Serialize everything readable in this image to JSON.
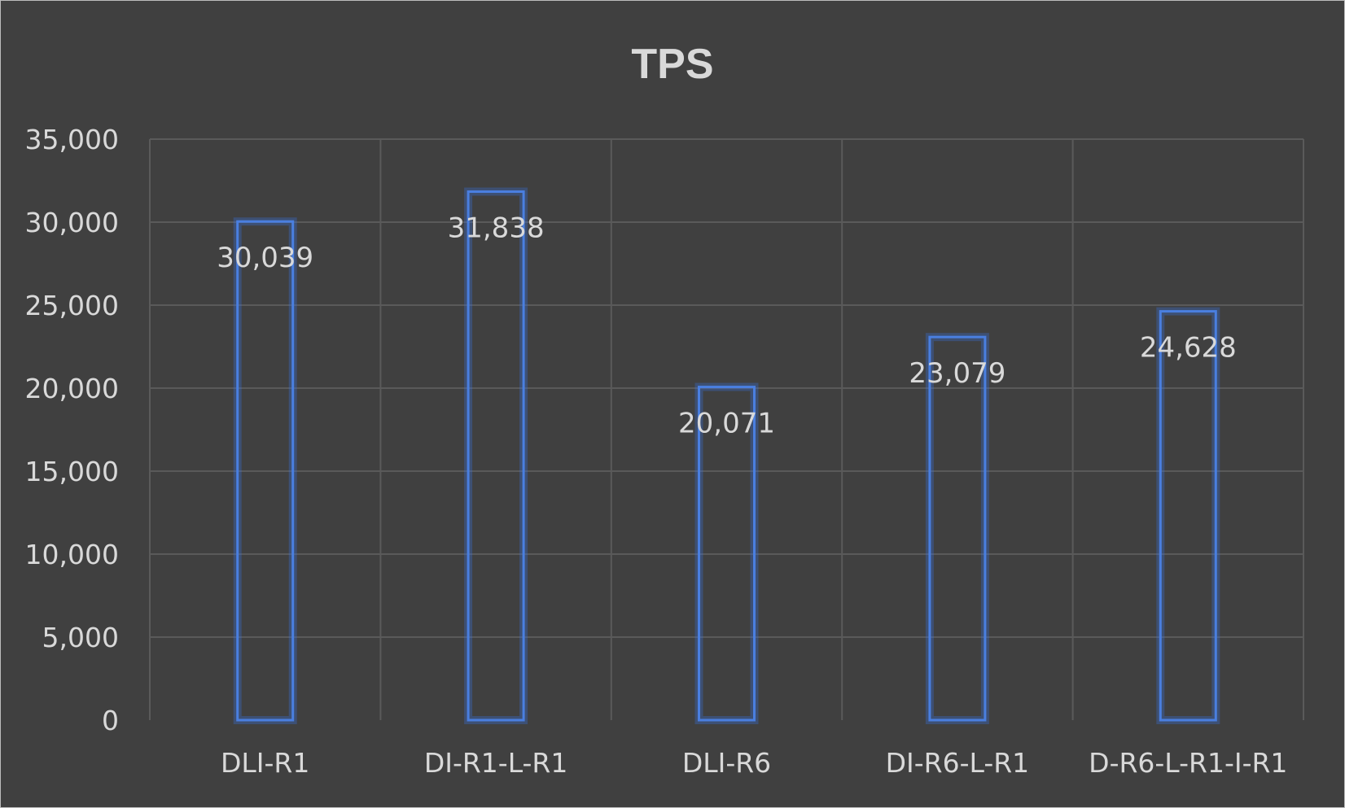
{
  "chart_data": {
    "type": "bar",
    "title": "TPS",
    "xlabel": "",
    "ylabel": "",
    "categories": [
      "DLI-R1",
      "DI-R1-L-R1",
      "DLI-R6",
      "DI-R6-L-R1",
      "D-R6-L-R1-I-R1"
    ],
    "series": [
      {
        "values": [
          30039,
          31838,
          20071,
          23079,
          24628
        ],
        "labels": [
          "30,039",
          "31,838",
          "20,071",
          "23,079",
          "24,628"
        ],
        "color": "#4a7fe0"
      }
    ],
    "ylim": [
      0,
      35000
    ],
    "yticks": [
      0,
      5000,
      10000,
      15000,
      20000,
      25000,
      30000,
      35000
    ],
    "ytick_labels": [
      "0",
      "5,000",
      "10,000",
      "15,000",
      "20,000",
      "25,000",
      "30,000",
      "35,000"
    ],
    "grid": true,
    "legend": "none",
    "background": "#404040",
    "text_color": "#d9d9d9",
    "grid_color": "#5a5a5a"
  }
}
